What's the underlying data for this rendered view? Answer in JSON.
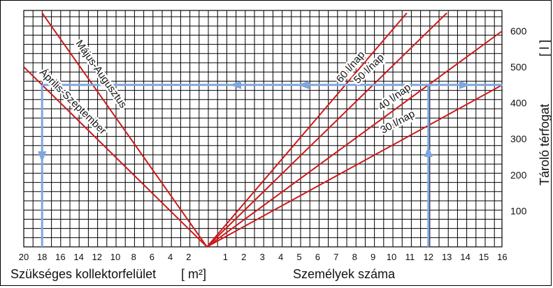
{
  "chart_data": {
    "type": "line",
    "left_axis": {
      "title": "Szükséges kollektorfelület",
      "unit": "[ m²]",
      "ticks": [
        "20",
        "18",
        "16",
        "14",
        "12",
        "10",
        "8",
        "6",
        "4",
        "2"
      ],
      "range": [
        0,
        20
      ]
    },
    "right_axis": {
      "title": "Személyek száma",
      "ticks": [
        "1",
        "2",
        "3",
        "4",
        "5",
        "6",
        "7",
        "8",
        "9",
        "10",
        "11",
        "12",
        "13",
        "14",
        "15",
        "16"
      ],
      "range": [
        0,
        16
      ]
    },
    "y_axis": {
      "title": "Tároló térfogat",
      "unit": "[ l ]",
      "ticks": [
        "100",
        "200",
        "300",
        "400",
        "500",
        "600"
      ],
      "range": [
        0,
        650
      ]
    },
    "grid": true,
    "lines_left": [
      {
        "name": "Május-Augusztus",
        "points": [
          [
            0,
            0
          ],
          [
            18,
            650
          ]
        ]
      },
      {
        "name": "Április-Szeptember",
        "points": [
          [
            0,
            0
          ],
          [
            20,
            500
          ]
        ]
      }
    ],
    "lines_right": [
      {
        "name": "60 l/nap",
        "points": [
          [
            0,
            0
          ],
          [
            10.83,
            650
          ]
        ]
      },
      {
        "name": "50 l/nap",
        "points": [
          [
            0,
            0
          ],
          [
            13,
            650
          ]
        ]
      },
      {
        "name": "40 l/nap",
        "points": [
          [
            0,
            0
          ],
          [
            16,
            600
          ]
        ]
      },
      {
        "name": "30 l/nap",
        "points": [
          [
            0,
            0
          ],
          [
            16,
            450
          ]
        ]
      }
    ],
    "example_path": {
      "persons": 12,
      "volume": 450,
      "area": 18
    },
    "colors": {
      "grid": "#000000",
      "lines": "#cc1a1a",
      "arrows": "#7ea6e0"
    }
  }
}
